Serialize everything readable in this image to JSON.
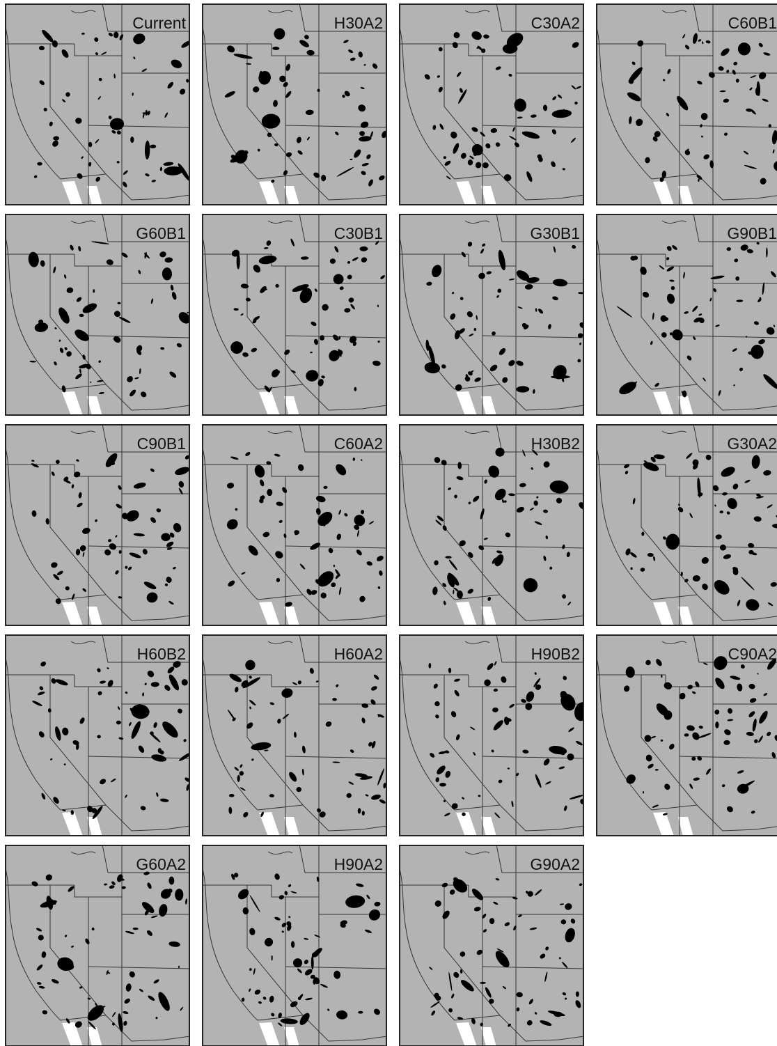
{
  "panels": [
    {
      "label": "Current"
    },
    {
      "label": "H30A2"
    },
    {
      "label": "C30A2"
    },
    {
      "label": "C60B1"
    },
    {
      "label": "G60B1"
    },
    {
      "label": "C30B1"
    },
    {
      "label": "G30B1"
    },
    {
      "label": "G90B1"
    },
    {
      "label": "C90B1"
    },
    {
      "label": "C60A2"
    },
    {
      "label": "H30B2"
    },
    {
      "label": "G30A2"
    },
    {
      "label": "H60B2"
    },
    {
      "label": "H60A2"
    },
    {
      "label": "H90B2"
    },
    {
      "label": "C90A2"
    },
    {
      "label": "G60A2"
    },
    {
      "label": "H90A2"
    },
    {
      "label": "G90A2"
    }
  ]
}
